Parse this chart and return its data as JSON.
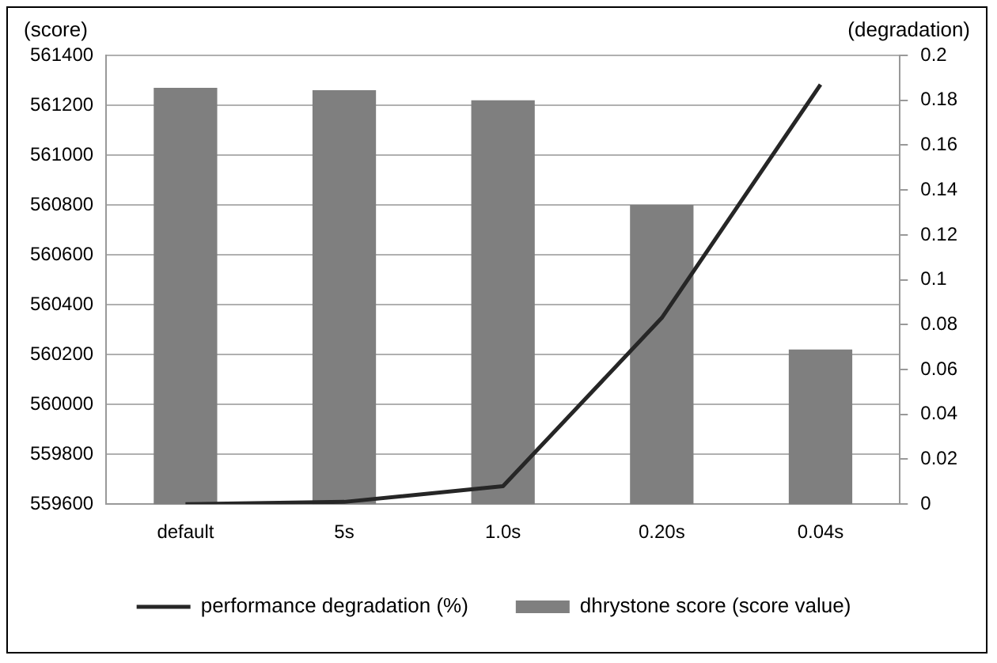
{
  "chart_data": {
    "type": "bar",
    "ylabel": "(score)",
    "y2label": "(degradation)",
    "categories": [
      "default",
      "5s",
      "1.0s",
      "0.20s",
      "0.04s"
    ],
    "series": [
      {
        "name": "dhrystone score (score value)",
        "color": "#7f7f7f",
        "values": [
          561270,
          561260,
          561220,
          560800,
          560220
        ]
      },
      {
        "name": "performance degradation (%)",
        "type": "line",
        "axis": "y2",
        "color": "#262626",
        "values": [
          0,
          0.001,
          0.008,
          0.083,
          0.187
        ]
      }
    ],
    "ylim": [
      559600,
      561400
    ],
    "yticks": [
      559600,
      559800,
      560000,
      560200,
      560400,
      560600,
      560800,
      561000,
      561200,
      561400
    ],
    "y2lim": [
      0,
      0.2
    ],
    "y2ticks": [
      0,
      0.02,
      0.04,
      0.06,
      0.08,
      0.1,
      0.12,
      0.14,
      0.16,
      0.18,
      0.2
    ],
    "grid": "y",
    "legend": "bottom",
    "marker": "none",
    "line_style": "solid"
  }
}
